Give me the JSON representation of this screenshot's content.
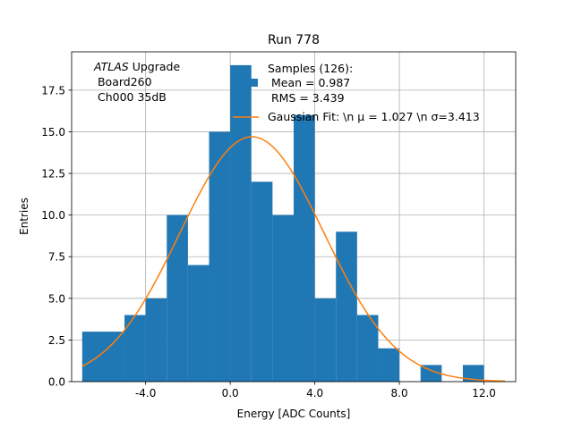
{
  "chart_data": {
    "type": "bar",
    "title": "Run 778",
    "xlabel": "Energy [ADC Counts]",
    "ylabel": "Entries",
    "xlim": [
      -7.5,
      13.5
    ],
    "ylim": [
      0,
      19.8
    ],
    "grid": true,
    "bar_color": "#1f77b4",
    "fit_color": "#ff7f0e",
    "x_ticks": [
      -4.0,
      0.0,
      4.0,
      8.0,
      12.0
    ],
    "x_tick_labels": [
      "-4.0",
      "0.0",
      "4.0",
      "8.0",
      "12.0"
    ],
    "y_ticks": [
      0.0,
      2.5,
      5.0,
      7.5,
      10.0,
      12.5,
      15.0,
      17.5
    ],
    "y_tick_labels": [
      "0.0",
      "2.5",
      "5.0",
      "7.5",
      "10.0",
      "12.5",
      "15.0",
      "17.5"
    ],
    "bins": [
      {
        "x0": -7.0,
        "x1": -5.0,
        "count": 3
      },
      {
        "x0": -5.0,
        "x1": -4.0,
        "count": 4
      },
      {
        "x0": -4.0,
        "x1": -3.0,
        "count": 5
      },
      {
        "x0": -3.0,
        "x1": -2.0,
        "count": 10
      },
      {
        "x0": -2.0,
        "x1": -1.0,
        "count": 7
      },
      {
        "x0": -1.0,
        "x1": 0.0,
        "count": 15
      },
      {
        "x0": 0.0,
        "x1": 1.0,
        "count": 19
      },
      {
        "x0": 1.0,
        "x1": 2.0,
        "count": 12
      },
      {
        "x0": 2.0,
        "x1": 3.0,
        "count": 10
      },
      {
        "x0": 3.0,
        "x1": 4.0,
        "count": 16
      },
      {
        "x0": 4.0,
        "x1": 5.0,
        "count": 5
      },
      {
        "x0": 5.0,
        "x1": 6.0,
        "count": 9
      },
      {
        "x0": 6.0,
        "x1": 7.0,
        "count": 4
      },
      {
        "x0": 7.0,
        "x1": 8.0,
        "count": 2
      },
      {
        "x0": 9.0,
        "x1": 10.0,
        "count": 1
      },
      {
        "x0": 11.0,
        "x1": 12.0,
        "count": 1
      }
    ],
    "gaussian_fit": {
      "mean": 1.027,
      "sigma": 3.413,
      "amplitude": 14.7,
      "x_range": [
        -7.0,
        13.0
      ]
    },
    "annotation": {
      "atlas": "ATLAS",
      "rest": " Upgrade",
      "line2": " Board260",
      "line3": " Ch000 35dB"
    },
    "legend": {
      "placement": "top-center",
      "samples_line1": "Samples (126):",
      "samples_line2": " Mean = 0.987",
      "samples_line3": " RMS = 3.439",
      "fit_label": "Gaussian Fit: \\n μ = 1.027 \\n σ=3.413"
    }
  }
}
